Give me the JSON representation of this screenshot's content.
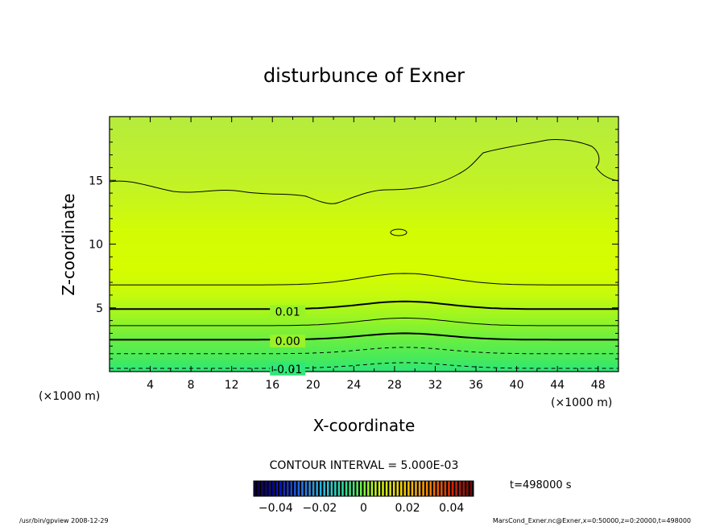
{
  "chart_data": {
    "type": "contour",
    "title": "disturbunce of Exner",
    "xlabel": "X-coordinate",
    "ylabel": "Z-coordinate",
    "x_unit": "(×1000 m)",
    "z_unit": "(×1000 m)",
    "xlim": [
      0,
      50
    ],
    "zlim": [
      0,
      20
    ],
    "x_ticks": [
      4,
      8,
      12,
      16,
      20,
      24,
      28,
      32,
      36,
      40,
      44,
      48
    ],
    "x_tick_labels": [
      "4",
      "8",
      "12",
      "16",
      "20",
      "24",
      "28",
      "32",
      "36",
      "40",
      "44",
      "48"
    ],
    "z_ticks": [
      5,
      10,
      15
    ],
    "z_tick_labels": [
      "5",
      "10",
      "15"
    ],
    "contour_interval_text": "CONTOUR INTERVAL = 5.000E-03",
    "contour_labels": [
      {
        "text": "0.01",
        "x": 17.5,
        "z": 4.7
      },
      {
        "text": "0.00",
        "x": 17.5,
        "z": 2.4
      },
      {
        "text": "-0.01",
        "x": 17.5,
        "z": 0.2
      }
    ],
    "contours": [
      {
        "level": 0.015,
        "style": "thin",
        "z_base": 6.8,
        "bump": 0.9
      },
      {
        "level": 0.01,
        "style": "thick",
        "z_base": 4.9,
        "bump": 0.6
      },
      {
        "level": 0.005,
        "style": "thin",
        "z_base": 3.6,
        "bump": 0.6
      },
      {
        "level": 0.0,
        "style": "thick",
        "z_base": 2.5,
        "bump": 0.5
      },
      {
        "level": -0.005,
        "style": "dashed",
        "z_base": 1.4,
        "bump": 0.5
      },
      {
        "level": -0.01,
        "style": "dashed",
        "z_base": 0.25,
        "bump": 0.45
      }
    ],
    "colorbar": {
      "min": -0.05,
      "max": 0.05,
      "ticks": [
        -0.04,
        -0.02,
        0,
        0.02,
        0.04
      ],
      "tick_labels": [
        "−0.04",
        "−0.02",
        "0",
        "0.02",
        "0.04"
      ]
    }
  },
  "time_label": "t=498000 s",
  "footer_left": "/usr/bin/gpview   2008-12-29",
  "footer_right": "MarsCond_Exner.nc@Exner,x=0:50000,z=0:20000,t=498000"
}
